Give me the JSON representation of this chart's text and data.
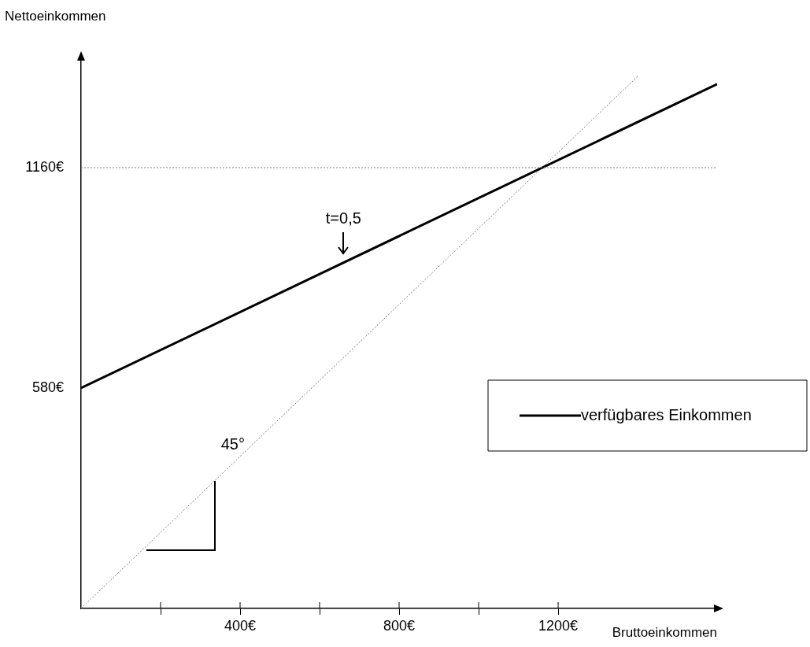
{
  "chart_data": {
    "type": "line",
    "xlabel": "Bruttoeinkommen",
    "ylabel": "Nettoeinkommen",
    "xlim": [
      0,
      1600
    ],
    "ylim": [
      0,
      1450
    ],
    "xticks": [
      {
        "value": 200,
        "label": null
      },
      {
        "value": 400,
        "label": "400€"
      },
      {
        "value": 600,
        "label": null
      },
      {
        "value": 800,
        "label": "800€"
      },
      {
        "value": 1000,
        "label": null
      },
      {
        "value": 1200,
        "label": "1200€"
      }
    ],
    "yticks": [
      {
        "value": 580,
        "label": "580€"
      },
      {
        "value": 1160,
        "label": "1160€"
      }
    ],
    "series": [
      {
        "name": "verfügbares Einkommen",
        "color": "#000000",
        "x": [
          0,
          1600
        ],
        "values": [
          580,
          1380
        ],
        "line_style": "solid"
      },
      {
        "color": "#808080",
        "x": [
          0,
          1400
        ],
        "values": [
          0,
          1400
        ],
        "line_style": "dotted"
      }
    ],
    "ref_lines": [
      {
        "axis": "y",
        "value": 1160,
        "color": "#808080",
        "line_style": "dotted"
      }
    ],
    "annotations": [
      {
        "text": "t=0,5",
        "x": 660,
        "y": 910
      },
      "45°"
    ],
    "grid": false,
    "legend": "right",
    "marker": "none"
  }
}
